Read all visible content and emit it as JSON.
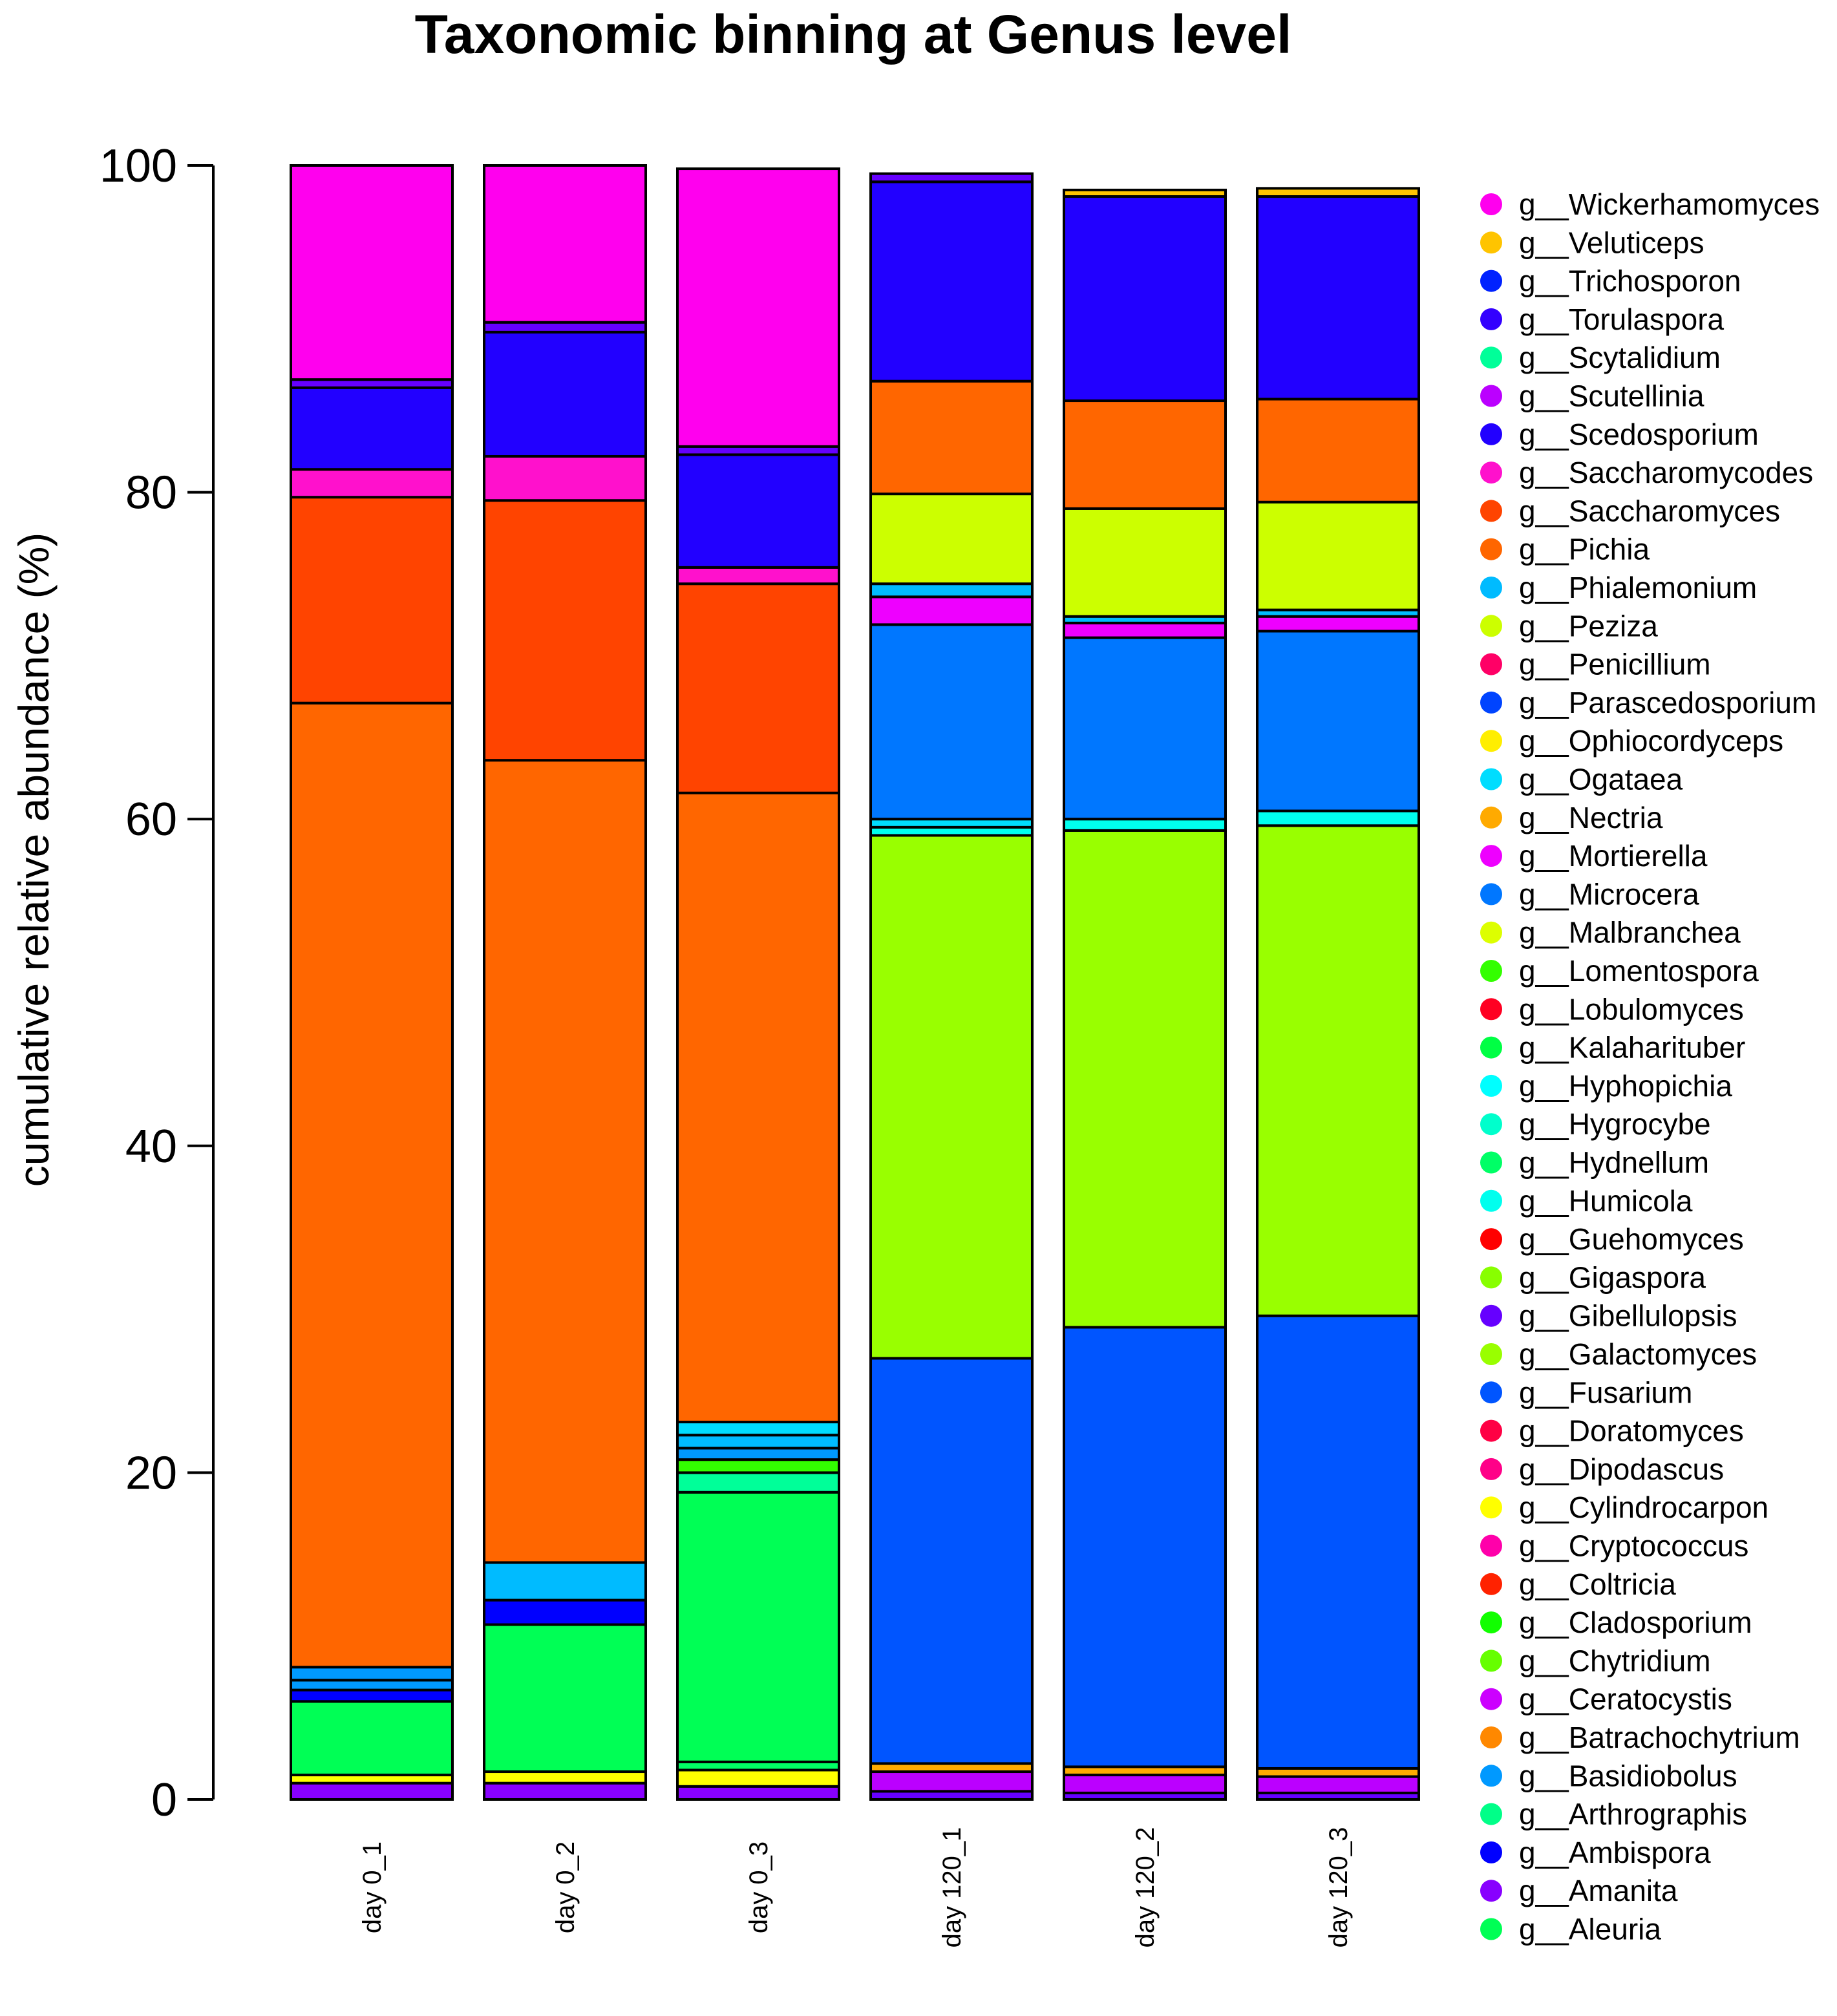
{
  "chart_data": {
    "type": "bar",
    "stacked": true,
    "title": "Taxonomic binning at Genus level",
    "xlabel": "",
    "ylabel": "cumulative relative abundance (%)",
    "ylim": [
      0,
      100
    ],
    "yticks": [
      0,
      20,
      40,
      60,
      80,
      100
    ],
    "categories": [
      "day 0_1",
      "day 0_2",
      "day 0_3",
      "day 120_1",
      "day 120_2",
      "day 120_3"
    ],
    "legend": [
      {
        "name": "g__Wickerhamomyces",
        "color": "#ff00ee"
      },
      {
        "name": "g__Veluticeps",
        "color": "#ffc400"
      },
      {
        "name": "g__Trichosporon",
        "color": "#0022ff"
      },
      {
        "name": "g__Torulaspora",
        "color": "#3300ff"
      },
      {
        "name": "g__Scytalidium",
        "color": "#00ff99"
      },
      {
        "name": "g__Scutellinia",
        "color": "#bb00ff"
      },
      {
        "name": "g__Scedosporium",
        "color": "#2200ff"
      },
      {
        "name": "g__Saccharomycodes",
        "color": "#ff11cc"
      },
      {
        "name": "g__Saccharomyces",
        "color": "#ff4400"
      },
      {
        "name": "g__Pichia",
        "color": "#ff6600"
      },
      {
        "name": "g__Phialemonium",
        "color": "#00bbff"
      },
      {
        "name": "g__Peziza",
        "color": "#ccff00"
      },
      {
        "name": "g__Penicillium",
        "color": "#ff0066"
      },
      {
        "name": "g__Parascedosporium",
        "color": "#0044ff"
      },
      {
        "name": "g__Ophiocordyceps",
        "color": "#ffee00"
      },
      {
        "name": "g__Ogataea",
        "color": "#00ddff"
      },
      {
        "name": "g__Nectria",
        "color": "#ffaa00"
      },
      {
        "name": "g__Mortierella",
        "color": "#ee00ff"
      },
      {
        "name": "g__Microcera",
        "color": "#0077ff"
      },
      {
        "name": "g__Malbranchea",
        "color": "#ddff00"
      },
      {
        "name": "g__Lomentospora",
        "color": "#33ff00"
      },
      {
        "name": "g__Lobulomyces",
        "color": "#ff0022"
      },
      {
        "name": "g__Kalaharituber",
        "color": "#00ff44"
      },
      {
        "name": "g__Hyphopichia",
        "color": "#00ffff"
      },
      {
        "name": "g__Hygrocybe",
        "color": "#00ffcc"
      },
      {
        "name": "g__Hydnellum",
        "color": "#00ff66"
      },
      {
        "name": "g__Humicola",
        "color": "#00ffee"
      },
      {
        "name": "g__Guehomyces",
        "color": "#ff0000"
      },
      {
        "name": "g__Gigaspora",
        "color": "#88ff00"
      },
      {
        "name": "g__Gibellulopsis",
        "color": "#6600ff"
      },
      {
        "name": "g__Galactomyces",
        "color": "#99ff00"
      },
      {
        "name": "g__Fusarium",
        "color": "#0055ff"
      },
      {
        "name": "g__Doratomyces",
        "color": "#ff0044"
      },
      {
        "name": "g__Dipodascus",
        "color": "#ff0088"
      },
      {
        "name": "g__Cylindrocarpon",
        "color": "#ffff00"
      },
      {
        "name": "g__Cryptococcus",
        "color": "#ff00aa"
      },
      {
        "name": "g__Coltricia",
        "color": "#ff2200"
      },
      {
        "name": "g__Cladosporium",
        "color": "#11ff00"
      },
      {
        "name": "g__Chytridium",
        "color": "#66ff00"
      },
      {
        "name": "g__Ceratocystis",
        "color": "#cc00ff"
      },
      {
        "name": "g__Batrachochytrium",
        "color": "#ff8800"
      },
      {
        "name": "g__Basidiobolus",
        "color": "#0099ff"
      },
      {
        "name": "g__Arthrographis",
        "color": "#00ff88"
      },
      {
        "name": "g__Ambispora",
        "color": "#0000ff"
      },
      {
        "name": "g__Amanita",
        "color": "#8800ff"
      },
      {
        "name": "g__Aleuria",
        "color": "#00ff55"
      }
    ],
    "stacks": [
      {
        "category": "day 0_1",
        "segments": [
          {
            "name": "g__Amanita",
            "value": 1.0
          },
          {
            "name": "g__Cylindrocarpon",
            "value": 0.5
          },
          {
            "name": "g__Aleuria",
            "value": 4.5
          },
          {
            "name": "g__Ambispora",
            "value": 0.7
          },
          {
            "name": "g__Basidiobolus",
            "value": 0.6
          },
          {
            "name": "g__Basidiobolus",
            "value": 0.8
          },
          {
            "name": "g__Pichia",
            "value": 59.0
          },
          {
            "name": "g__Saccharomyces",
            "value": 12.6
          },
          {
            "name": "g__Saccharomycodes",
            "value": 1.7
          },
          {
            "name": "g__Scedosporium",
            "value": 5.0
          },
          {
            "name": "g__Gibellulopsis",
            "value": 0.5
          },
          {
            "name": "g__Wickerhamomyces",
            "value": 13.1
          }
        ]
      },
      {
        "category": "day 0_2",
        "segments": [
          {
            "name": "g__Amanita",
            "value": 1.0
          },
          {
            "name": "g__Cylindrocarpon",
            "value": 0.7
          },
          {
            "name": "g__Aleuria",
            "value": 9.0
          },
          {
            "name": "g__Ambispora",
            "value": 1.5
          },
          {
            "name": "g__Phialemonium",
            "value": 2.3
          },
          {
            "name": "g__Pichia",
            "value": 49.1
          },
          {
            "name": "g__Saccharomyces",
            "value": 15.9
          },
          {
            "name": "g__Saccharomycodes",
            "value": 2.7
          },
          {
            "name": "g__Scedosporium",
            "value": 7.6
          },
          {
            "name": "g__Gibellulopsis",
            "value": 0.6
          },
          {
            "name": "g__Wickerhamomyces",
            "value": 9.6
          }
        ]
      },
      {
        "category": "day 0_3",
        "segments": [
          {
            "name": "g__Amanita",
            "value": 0.8
          },
          {
            "name": "g__Cylindrocarpon",
            "value": 1.0
          },
          {
            "name": "g__Hydnellum",
            "value": 0.5
          },
          {
            "name": "g__Aleuria",
            "value": 16.5
          },
          {
            "name": "g__Scytalidium",
            "value": 1.2
          },
          {
            "name": "g__Lomentospora",
            "value": 0.8
          },
          {
            "name": "g__Basidiobolus",
            "value": 0.7
          },
          {
            "name": "g__Phialemonium",
            "value": 0.8
          },
          {
            "name": "g__Ogataea",
            "value": 0.8
          },
          {
            "name": "g__Pichia",
            "value": 38.5
          },
          {
            "name": "g__Saccharomyces",
            "value": 12.8
          },
          {
            "name": "g__Saccharomycodes",
            "value": 1.0
          },
          {
            "name": "g__Scedosporium",
            "value": 6.9
          },
          {
            "name": "g__Gibellulopsis",
            "value": 0.5
          },
          {
            "name": "g__Wickerhamomyces",
            "value": 17.0
          }
        ]
      },
      {
        "category": "day 120_1",
        "segments": [
          {
            "name": "g__Gibellulopsis",
            "value": 0.5
          },
          {
            "name": "g__Scutellinia",
            "value": 1.2
          },
          {
            "name": "g__Nectria",
            "value": 0.5
          },
          {
            "name": "g__Fusarium",
            "value": 24.8
          },
          {
            "name": "g__Galactomyces",
            "value": 32.0
          },
          {
            "name": "g__Humicola",
            "value": 0.5
          },
          {
            "name": "g__Ogataea",
            "value": 0.5
          },
          {
            "name": "g__Microcera",
            "value": 11.9
          },
          {
            "name": "g__Mortierella",
            "value": 1.7
          },
          {
            "name": "g__Phialemonium",
            "value": 0.8
          },
          {
            "name": "g__Peziza",
            "value": 5.5
          },
          {
            "name": "g__Pichia",
            "value": 6.9
          },
          {
            "name": "g__Scedosporium",
            "value": 12.2
          },
          {
            "name": "g__Gibellulopsis",
            "value": 0.5
          }
        ]
      },
      {
        "category": "day 120_2",
        "segments": [
          {
            "name": "g__Gibellulopsis",
            "value": 0.4
          },
          {
            "name": "g__Scutellinia",
            "value": 1.1
          },
          {
            "name": "g__Nectria",
            "value": 0.5
          },
          {
            "name": "g__Fusarium",
            "value": 26.9
          },
          {
            "name": "g__Galactomyces",
            "value": 30.4
          },
          {
            "name": "g__Humicola",
            "value": 0.7
          },
          {
            "name": "g__Microcera",
            "value": 11.1
          },
          {
            "name": "g__Mortierella",
            "value": 0.9
          },
          {
            "name": "g__Phialemonium",
            "value": 0.4
          },
          {
            "name": "g__Peziza",
            "value": 6.6
          },
          {
            "name": "g__Pichia",
            "value": 6.6
          },
          {
            "name": "g__Scedosporium",
            "value": 12.5
          },
          {
            "name": "g__Veluticeps",
            "value": 0.4
          }
        ]
      },
      {
        "category": "day 120_3",
        "segments": [
          {
            "name": "g__Gibellulopsis",
            "value": 0.4
          },
          {
            "name": "g__Scutellinia",
            "value": 1.0
          },
          {
            "name": "g__Nectria",
            "value": 0.5
          },
          {
            "name": "g__Fusarium",
            "value": 27.7
          },
          {
            "name": "g__Galactomyces",
            "value": 30.0
          },
          {
            "name": "g__Humicola",
            "value": 0.9
          },
          {
            "name": "g__Microcera",
            "value": 11.0
          },
          {
            "name": "g__Mortierella",
            "value": 0.9
          },
          {
            "name": "g__Phialemonium",
            "value": 0.4
          },
          {
            "name": "g__Peziza",
            "value": 6.6
          },
          {
            "name": "g__Pichia",
            "value": 6.3
          },
          {
            "name": "g__Scedosporium",
            "value": 12.4
          },
          {
            "name": "g__Veluticeps",
            "value": 0.5
          }
        ]
      }
    ]
  }
}
